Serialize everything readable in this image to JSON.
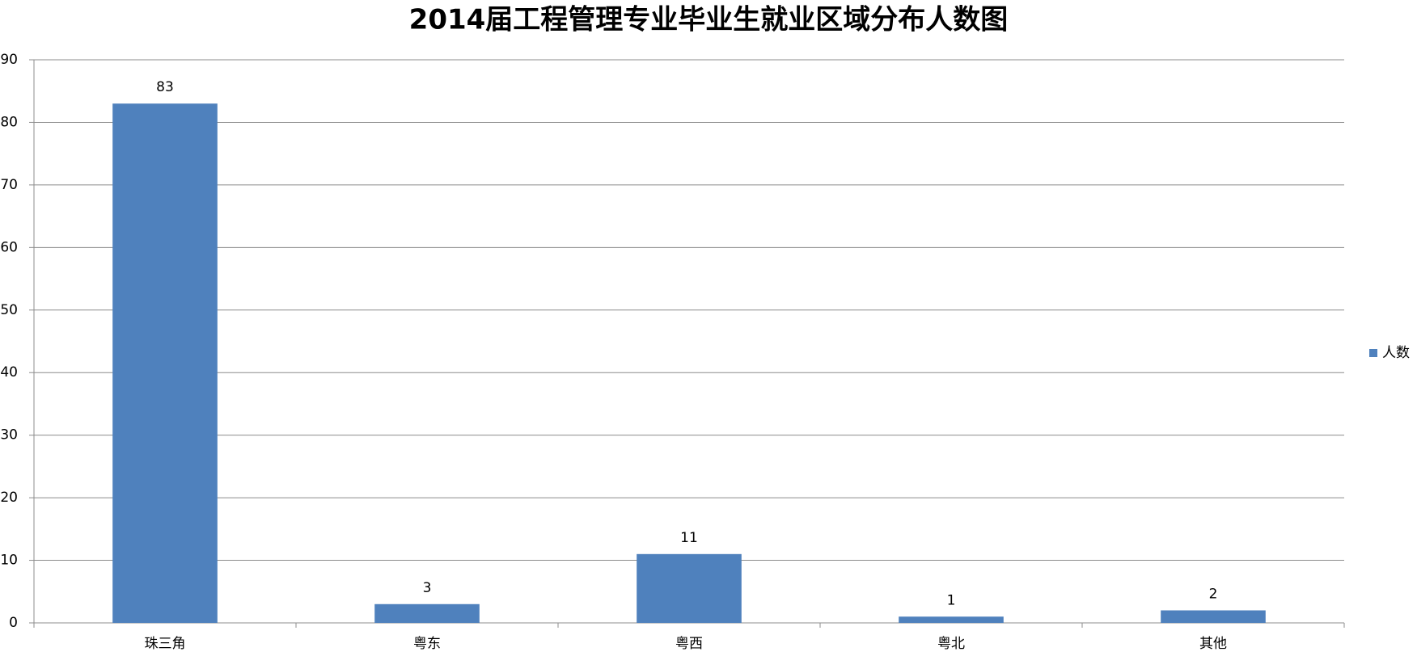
{
  "chart_data": {
    "type": "bar",
    "title": "2014届工程管理专业毕业生就业区域分布人数图",
    "categories": [
      "珠三角",
      "粤东",
      "粤西",
      "粤北",
      "其他"
    ],
    "series": [
      {
        "name": "人数",
        "color": "#4f81bd",
        "values": [
          83,
          3,
          11,
          1,
          2
        ]
      }
    ],
    "ylim": [
      0,
      90
    ],
    "yticks": [
      0,
      10,
      20,
      30,
      40,
      50,
      60,
      70,
      80,
      90
    ],
    "grid": true,
    "legend": "right",
    "data_labels": true
  }
}
